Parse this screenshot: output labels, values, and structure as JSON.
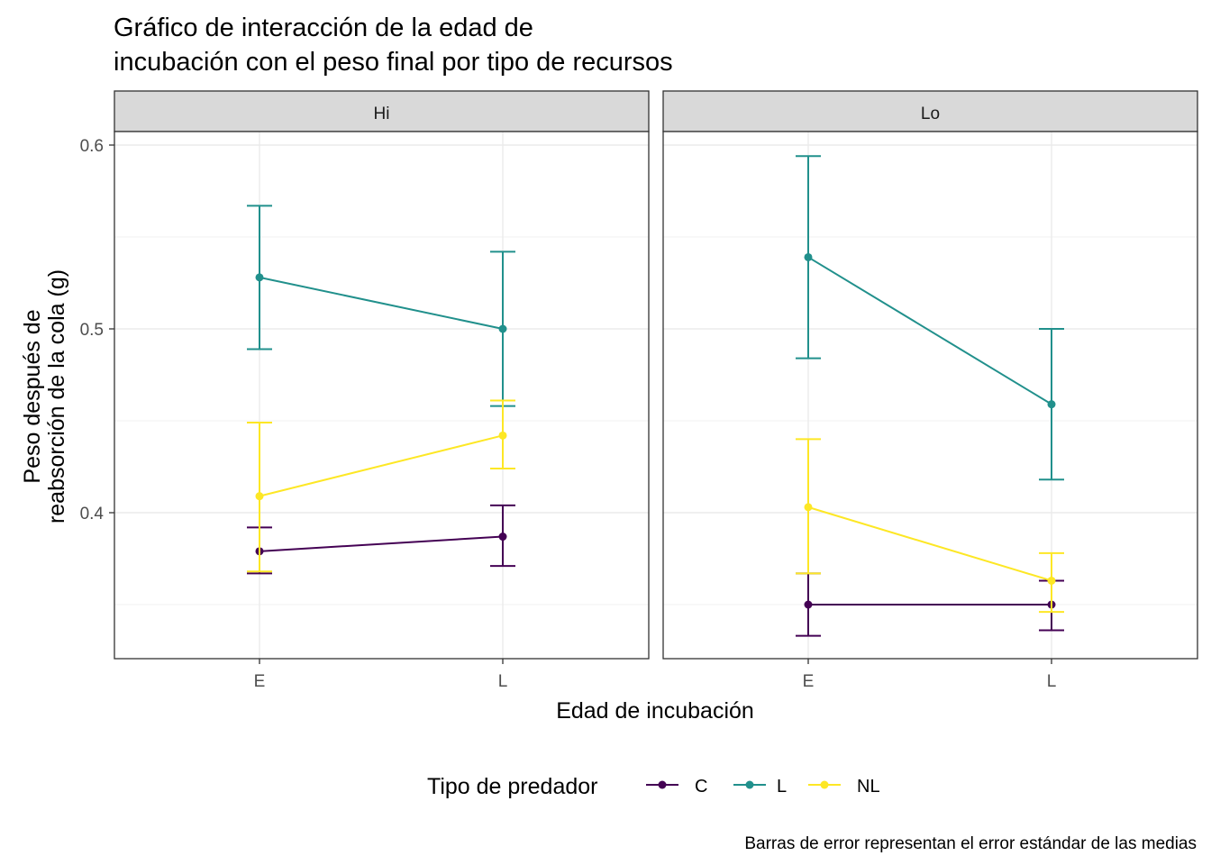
{
  "chart_data": {
    "type": "line",
    "title_line1": "Gráfico de interacción de la edad de",
    "title_line2": "incubación con el peso final por tipo de recursos",
    "xlabel": "Edad de incubación",
    "ylabel_line1": "Peso después de",
    "ylabel_line2": "reabsorción de la cola (g)",
    "caption": "Barras de error representan el error estándar de las medias",
    "categories": [
      "E",
      "L"
    ],
    "ylim": [
      0.32,
      0.62
    ],
    "yticks": [
      "0.4",
      "0.5",
      "0.6"
    ],
    "grid": true,
    "legend": {
      "title": "Tipo de predador",
      "placement": "bottom",
      "entries": [
        "C",
        "L",
        "NL"
      ]
    },
    "colors": {
      "C": "#440154",
      "L": "#21908C",
      "NL": "#FDE725"
    },
    "facets": [
      {
        "label": "Hi",
        "series": [
          {
            "name": "C",
            "values": [
              0.379,
              0.387
            ],
            "lower": [
              0.367,
              0.371
            ],
            "upper": [
              0.392,
              0.404
            ]
          },
          {
            "name": "L",
            "values": [
              0.528,
              0.5
            ],
            "lower": [
              0.489,
              0.458
            ],
            "upper": [
              0.567,
              0.542
            ]
          },
          {
            "name": "NL",
            "values": [
              0.409,
              0.442
            ],
            "lower": [
              0.368,
              0.424
            ],
            "upper": [
              0.449,
              0.461
            ]
          }
        ]
      },
      {
        "label": "Lo",
        "series": [
          {
            "name": "C",
            "values": [
              0.35,
              0.35
            ],
            "lower": [
              0.333,
              0.336
            ],
            "upper": [
              0.367,
              0.363
            ]
          },
          {
            "name": "L",
            "values": [
              0.539,
              0.459
            ],
            "lower": [
              0.484,
              0.418
            ],
            "upper": [
              0.594,
              0.5
            ]
          },
          {
            "name": "NL",
            "values": [
              0.403,
              0.363
            ],
            "lower": [
              0.367,
              0.346
            ],
            "upper": [
              0.44,
              0.378
            ]
          }
        ]
      }
    ]
  }
}
